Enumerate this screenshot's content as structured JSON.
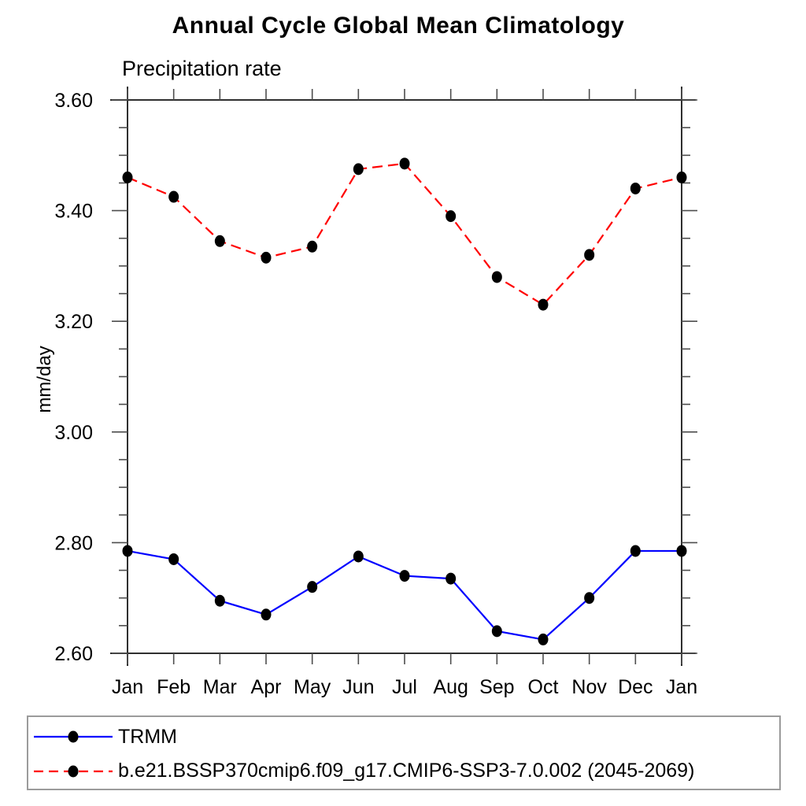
{
  "chart_data": {
    "type": "line",
    "title": "Annual Cycle Global Mean Climatology",
    "subtitle": "Precipitation rate",
    "ylabel": "mm/day",
    "xlabel": "",
    "categories": [
      "Jan",
      "Feb",
      "Mar",
      "Apr",
      "May",
      "Jun",
      "Jul",
      "Aug",
      "Sep",
      "Oct",
      "Nov",
      "Dec",
      "Jan"
    ],
    "ylim": [
      2.6,
      3.6
    ],
    "ytick_step": 0.2,
    "ytick_minor_step": 0.05,
    "ytick_labels": [
      "2.60",
      "2.80",
      "3.00",
      "3.20",
      "3.40",
      "3.60"
    ],
    "grid": false,
    "legend_position": "bottom-left-box",
    "series": [
      {
        "name": "TRMM",
        "color": "#0000ff",
        "style": "solid",
        "marker": "filled-circle",
        "marker_color": "#000000",
        "values": [
          2.785,
          2.77,
          2.695,
          2.67,
          2.72,
          2.775,
          2.74,
          2.735,
          2.64,
          2.625,
          2.7,
          2.785,
          2.785
        ]
      },
      {
        "name": "b.e21.BSSP370cmip6.f09_g17.CMIP6-SSP3-7.0.002 (2045-2069)",
        "color": "#ff0000",
        "style": "dashed",
        "marker": "filled-circle",
        "marker_color": "#000000",
        "values": [
          3.46,
          3.425,
          3.345,
          3.315,
          3.335,
          3.475,
          3.485,
          3.39,
          3.28,
          3.23,
          3.32,
          3.44,
          3.46
        ]
      }
    ]
  }
}
